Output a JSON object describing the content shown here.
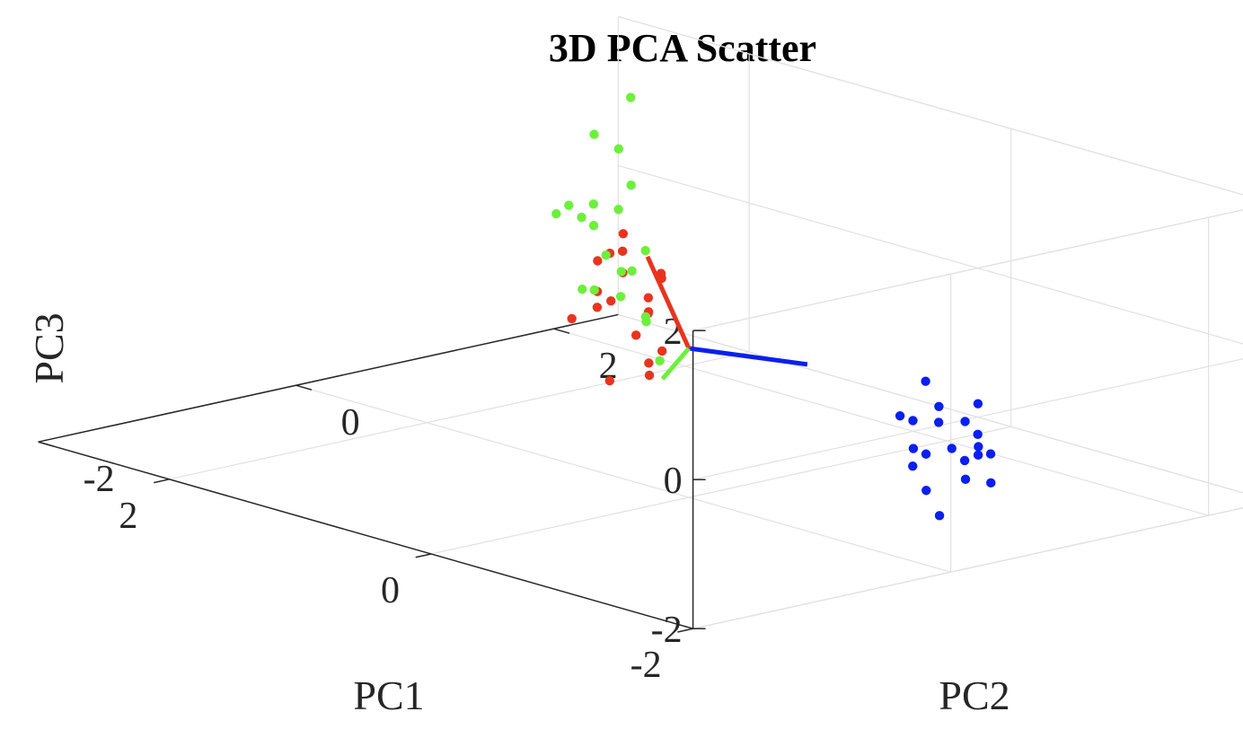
{
  "chart_data": {
    "type": "scatter",
    "title": "3D PCA Scatter",
    "xlabel": "PC1",
    "ylabel": "PC2",
    "zlabel": "PC3",
    "xlim": [
      -2,
      3
    ],
    "ylim": [
      -2,
      2.5
    ],
    "zlim": [
      -2,
      2
    ],
    "xticks": [
      "-2",
      "0",
      "2"
    ],
    "yticks": [
      "-2",
      "0",
      "2"
    ],
    "zticks": [
      "-2",
      "0",
      "2"
    ],
    "grid": true,
    "series": [
      {
        "color": "#0a1ff0",
        "points": [
          [
            -2.6,
            -0.4,
            0.3
          ],
          [
            -2.7,
            -0.6,
            0.6
          ],
          [
            -2.8,
            -0.9,
            -0.5
          ],
          [
            -2.4,
            -0.5,
            0.4
          ],
          [
            -2.5,
            -0.7,
            0.1
          ],
          [
            -2.9,
            -0.8,
            0.0
          ],
          [
            -2.3,
            -0.6,
            -0.2
          ],
          [
            -2.7,
            -0.5,
            0.8
          ],
          [
            -2.6,
            -0.8,
            -0.3
          ],
          [
            -2.5,
            -0.4,
            -0.1
          ],
          [
            -2.4,
            -0.7,
            0.5
          ],
          [
            -2.8,
            -0.6,
            0.2
          ],
          [
            -2.6,
            -0.9,
            0.3
          ],
          [
            -2.7,
            -0.4,
            -0.3
          ],
          [
            -2.5,
            -0.5,
            0.1
          ],
          [
            -2.3,
            -0.5,
            0.9
          ],
          [
            -2.9,
            -0.7,
            0.4
          ],
          [
            -2.4,
            -0.8,
            0.6
          ],
          [
            -2.6,
            -0.3,
            0.0
          ],
          [
            -2.5,
            -0.6,
            0.7
          ]
        ]
      },
      {
        "color": "#e8341f",
        "points": [
          [
            0.5,
            -0.2,
            1.0
          ],
          [
            0.8,
            0.2,
            0.8
          ],
          [
            0.6,
            -0.1,
            0.5
          ],
          [
            0.3,
            -0.3,
            0.6
          ],
          [
            0.9,
            0.4,
            0.7
          ],
          [
            0.7,
            0.0,
            0.2
          ],
          [
            0.5,
            0.3,
            -0.4
          ],
          [
            0.8,
            0.5,
            -0.1
          ],
          [
            1.0,
            0.8,
            0.2
          ],
          [
            0.6,
            0.2,
            -0.2
          ],
          [
            0.9,
            0.6,
            0.0
          ],
          [
            1.1,
            0.9,
            0.1
          ],
          [
            0.4,
            0.1,
            -0.6
          ],
          [
            0.7,
            0.4,
            -0.7
          ],
          [
            0.9,
            0.3,
            -1.0
          ],
          [
            0.5,
            -0.4,
            0.3
          ],
          [
            0.6,
            0.1,
            1.2
          ],
          [
            0.8,
            0.3,
            0.5
          ],
          [
            0.7,
            0.5,
            0.4
          ],
          [
            1.0,
            0.7,
            -0.3
          ]
        ]
      },
      {
        "color": "#6cf03c",
        "points": [
          [
            1.8,
            0.8,
            0.6
          ],
          [
            2.2,
            1.5,
            1.2
          ],
          [
            2.0,
            1.2,
            0.3
          ],
          [
            1.5,
            1.0,
            -0.1
          ],
          [
            2.5,
            1.8,
            0.0
          ],
          [
            2.8,
            2.3,
            0.4
          ],
          [
            3.0,
            2.6,
            -0.3
          ],
          [
            2.1,
            1.4,
            -0.8
          ],
          [
            1.8,
            1.3,
            -0.7
          ],
          [
            2.6,
            2.2,
            -1.1
          ],
          [
            2.2,
            1.9,
            -1.4
          ],
          [
            1.6,
            1.4,
            -1.5
          ],
          [
            2.0,
            1.1,
            0.5
          ],
          [
            2.4,
            1.7,
            -0.2
          ],
          [
            1.7,
            0.9,
            -0.4
          ],
          [
            2.3,
            2.0,
            -0.6
          ],
          [
            2.9,
            2.4,
            -0.5
          ],
          [
            1.9,
            1.6,
            -1.2
          ],
          [
            3.2,
            2.8,
            0.7
          ],
          [
            2.7,
            2.1,
            -0.9
          ]
        ]
      }
    ],
    "principal_axes": [
      {
        "color": "#0a1ff0",
        "vector": [
          -1.2,
          -0.3,
          0.5
        ]
      },
      {
        "color": "#e8341f",
        "vector": [
          1.3,
          1.0,
          0.2
        ]
      },
      {
        "color": "#6cf03c",
        "vector": [
          0.3,
          0.1,
          -0.6
        ]
      }
    ],
    "origin": [
      0,
      0,
      0
    ]
  }
}
